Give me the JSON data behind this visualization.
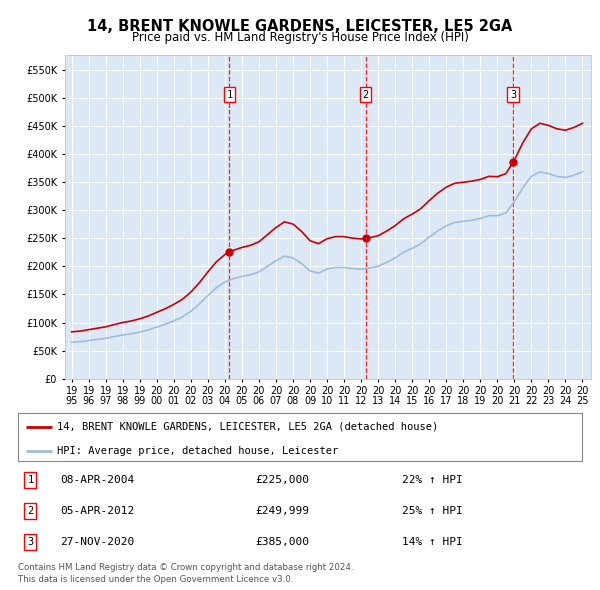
{
  "title": "14, BRENT KNOWLE GARDENS, LEICESTER, LE5 2GA",
  "subtitle": "Price paid vs. HM Land Registry's House Price Index (HPI)",
  "ylim": [
    0,
    575000
  ],
  "yticks": [
    0,
    50000,
    100000,
    150000,
    200000,
    250000,
    300000,
    350000,
    400000,
    450000,
    500000,
    550000
  ],
  "ytick_labels": [
    "£0",
    "£50K",
    "£100K",
    "£150K",
    "£200K",
    "£250K",
    "£300K",
    "£350K",
    "£400K",
    "£450K",
    "£500K",
    "£550K"
  ],
  "plot_bg_color": "#dce8f5",
  "hpi_line_color": "#a0bcd8",
  "price_line_color": "#cc0000",
  "sales": [
    {
      "date_num": 2004.27,
      "price": 225000,
      "label": "1"
    },
    {
      "date_num": 2012.27,
      "price": 249999,
      "label": "2"
    },
    {
      "date_num": 2020.92,
      "price": 385000,
      "label": "3"
    }
  ],
  "sale_dates": [
    "08-APR-2004",
    "05-APR-2012",
    "27-NOV-2020"
  ],
  "sale_prices": [
    "£225,000",
    "£249,999",
    "£385,000"
  ],
  "sale_hpi": [
    "22% ↑ HPI",
    "25% ↑ HPI",
    "14% ↑ HPI"
  ],
  "legend_label1": "14, BRENT KNOWLE GARDENS, LEICESTER, LE5 2GA (detached house)",
  "legend_label2": "HPI: Average price, detached house, Leicester",
  "footer1": "Contains HM Land Registry data © Crown copyright and database right 2024.",
  "footer2": "This data is licensed under the Open Government Licence v3.0.",
  "years_hpi": [
    1995.0,
    1995.5,
    1996.0,
    1996.5,
    1997.0,
    1997.5,
    1998.0,
    1998.5,
    1999.0,
    1999.5,
    2000.0,
    2000.5,
    2001.0,
    2001.5,
    2002.0,
    2002.5,
    2003.0,
    2003.5,
    2004.0,
    2004.5,
    2005.0,
    2005.5,
    2006.0,
    2006.5,
    2007.0,
    2007.5,
    2008.0,
    2008.5,
    2009.0,
    2009.5,
    2010.0,
    2010.5,
    2011.0,
    2011.5,
    2012.0,
    2012.5,
    2013.0,
    2013.5,
    2014.0,
    2014.5,
    2015.0,
    2015.5,
    2016.0,
    2016.5,
    2017.0,
    2017.5,
    2018.0,
    2018.5,
    2019.0,
    2019.5,
    2020.0,
    2020.5,
    2021.0,
    2021.5,
    2022.0,
    2022.5,
    2023.0,
    2023.5,
    2024.0,
    2024.5,
    2025.0
  ],
  "hpi_values": [
    65000,
    66000,
    68000,
    70000,
    72000,
    75000,
    78000,
    80000,
    83000,
    87000,
    92000,
    97000,
    103000,
    110000,
    120000,
    133000,
    148000,
    162000,
    172000,
    178000,
    182000,
    185000,
    190000,
    200000,
    210000,
    218000,
    215000,
    205000,
    192000,
    188000,
    195000,
    198000,
    198000,
    196000,
    195000,
    197000,
    200000,
    207000,
    215000,
    225000,
    232000,
    240000,
    252000,
    263000,
    272000,
    278000,
    280000,
    282000,
    285000,
    290000,
    290000,
    295000,
    315000,
    340000,
    360000,
    368000,
    365000,
    360000,
    358000,
    362000,
    368000
  ]
}
